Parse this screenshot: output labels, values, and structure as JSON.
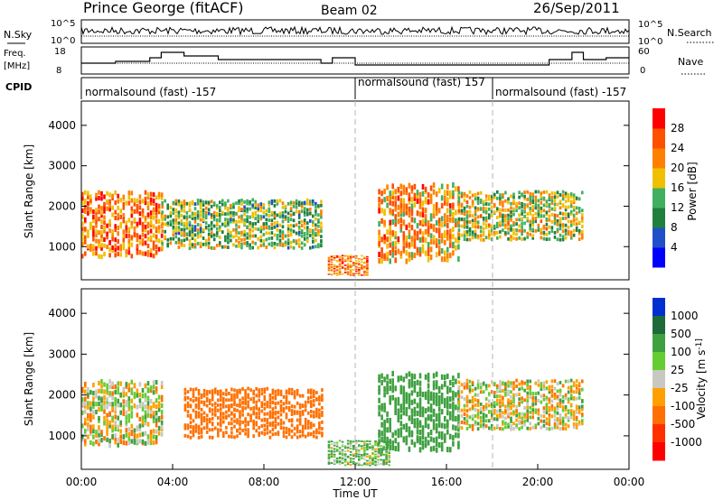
{
  "header": {
    "title": "Prince George (fitACF)",
    "beam": "Beam 02",
    "date": "26/Sep/2011"
  },
  "nsky_panel": {
    "left_label": "N.Sky",
    "right_label": "N.Search",
    "left_ticks": [
      "10^5",
      "10^0"
    ],
    "right_ticks": [
      "10^5",
      "10^0"
    ]
  },
  "freq_panel": {
    "left_label_1": "Freq.",
    "left_label_2": "[MHz]",
    "right_label": "Nave",
    "left_ticks": [
      "18",
      "8"
    ],
    "right_ticks": [
      "60",
      "0"
    ]
  },
  "cpid": {
    "label": "CPID",
    "segments": [
      {
        "text": "normalsound (fast) -157",
        "start_hour": 0
      },
      {
        "text": "normalsound (fast) 157",
        "start_hour": 12
      },
      {
        "text": "normalsound (fast) -157",
        "start_hour": 18
      }
    ]
  },
  "time_axis": {
    "label": "Time UT",
    "ticks": [
      "00:00",
      "04:00",
      "08:00",
      "12:00",
      "16:00",
      "20:00",
      "00:00"
    ]
  },
  "colors": {
    "power": [
      "#0000ff",
      "#2050c8",
      "#1f7f3f",
      "#40b060",
      "#f0c000",
      "#ff8000",
      "#ff5000",
      "#ff0000"
    ],
    "velocity": [
      "#0030d0",
      "#1e6a3a",
      "#3fa040",
      "#66cc33",
      "#c8c8c0",
      "#ffa000",
      "#ff7000",
      "#ff3000",
      "#ff0000"
    ],
    "dashed_line": "#b4b4b4"
  },
  "chart_data": [
    {
      "type": "heatmap",
      "title": "Power",
      "ylabel": "Slant Range [km]",
      "xlabel": "",
      "ylim": [
        180,
        4600
      ],
      "yticks": [
        1000,
        2000,
        3000,
        4000
      ],
      "xlim_hours": [
        0,
        24
      ],
      "colorbar": {
        "label": "Power [dB]",
        "tick_labels": [
          "4",
          "8",
          "12",
          "16",
          "20",
          "24",
          "28"
        ],
        "range": [
          0,
          30
        ]
      },
      "regions": [
        {
          "t_hours": [
            0,
            3.5
          ],
          "range_km": [
            800,
            2400
          ],
          "power_db": 22
        },
        {
          "t_hours": [
            3.5,
            10.5
          ],
          "range_km": [
            1000,
            2200
          ],
          "power_db": 14
        },
        {
          "t_hours": [
            10.8,
            12.5
          ],
          "range_km": [
            300,
            800
          ],
          "power_db": 22
        },
        {
          "t_hours": [
            13,
            16.5
          ],
          "range_km": [
            700,
            2600
          ],
          "power_db": 20
        },
        {
          "t_hours": [
            16.5,
            22
          ],
          "range_km": [
            1200,
            2400
          ],
          "power_db": 16
        }
      ]
    },
    {
      "type": "heatmap",
      "title": "Velocity",
      "ylabel": "Slant Range [km]",
      "xlabel": "Time UT",
      "ylim": [
        180,
        4600
      ],
      "yticks": [
        1000,
        2000,
        3000,
        4000
      ],
      "xlim_hours": [
        0,
        24
      ],
      "colorbar": {
        "label": "Velocity [m s^-1]",
        "tick_labels": [
          "1000",
          "500",
          "100",
          "25",
          "-25",
          "-100",
          "-500",
          "-1000"
        ]
      },
      "regions": [
        {
          "t_hours": [
            0,
            3.5
          ],
          "range_km": [
            800,
            2400
          ],
          "velocity_ms": 0
        },
        {
          "t_hours": [
            4.5,
            10.5
          ],
          "range_km": [
            1000,
            2200
          ],
          "velocity_ms": -300
        },
        {
          "t_hours": [
            10.8,
            13.5
          ],
          "range_km": [
            300,
            900
          ],
          "velocity_ms": 100
        },
        {
          "t_hours": [
            13,
            16.5
          ],
          "range_km": [
            700,
            2600
          ],
          "velocity_ms": 300
        },
        {
          "t_hours": [
            16.5,
            22
          ],
          "range_km": [
            1200,
            2400
          ],
          "velocity_ms": 0
        }
      ]
    }
  ]
}
